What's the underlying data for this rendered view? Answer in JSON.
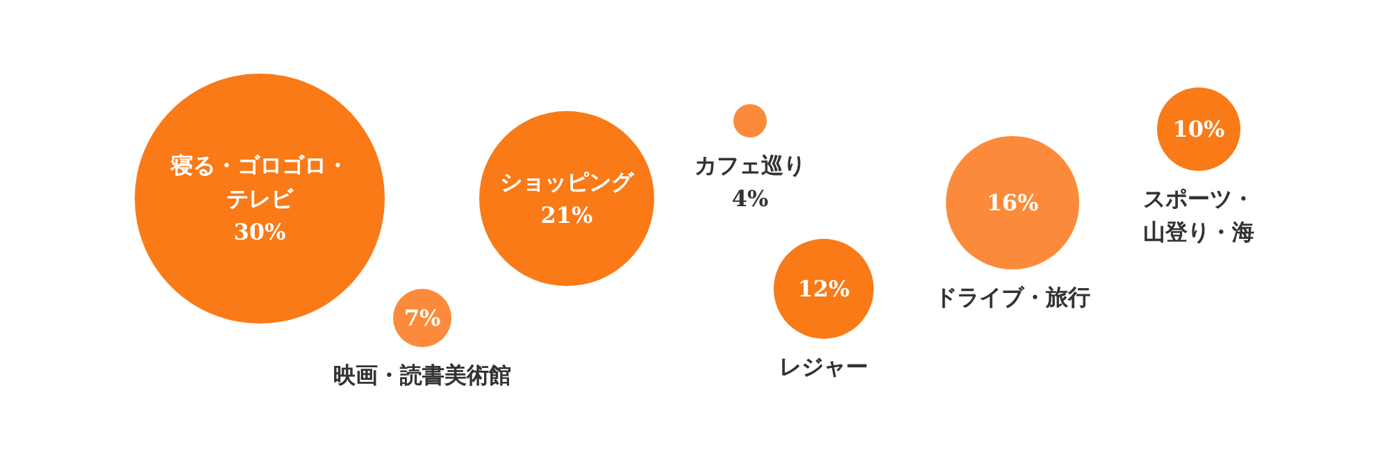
{
  "chart_data": {
    "type": "other",
    "categories": [
      "寝る・ゴロゴロ・テレビ",
      "映画・読書美術館",
      "ショッピング",
      "カフェ巡り",
      "レジャー",
      "ドライブ・旅行",
      "スポーツ・山登り・海"
    ],
    "values": [
      30,
      7,
      21,
      4,
      12,
      16,
      10
    ],
    "value_labels": [
      "30%",
      "7%",
      "21%",
      "4%",
      "12%",
      "16%",
      "10%"
    ],
    "colors": [
      "#f97a17",
      "#fb8b3a",
      "#f97a17",
      "#fb8b3a",
      "#f97a17",
      "#fb8b3a",
      "#f97a17"
    ]
  }
}
